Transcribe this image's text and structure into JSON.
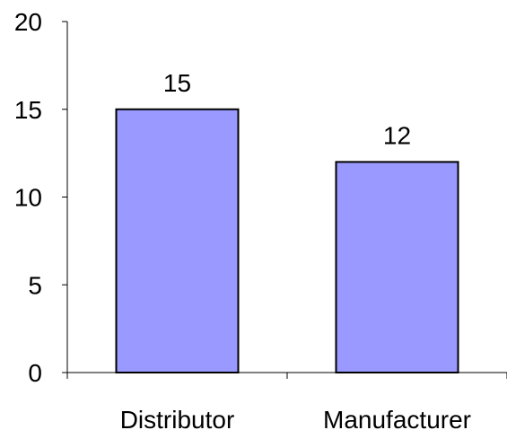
{
  "chart_data": {
    "type": "bar",
    "categories": [
      "Distributor",
      "Manufacturer"
    ],
    "values": [
      15,
      12
    ],
    "data_labels": [
      "15",
      "12"
    ],
    "y_ticks": [
      0,
      5,
      10,
      15,
      20
    ],
    "y_tick_labels": [
      "0",
      "5",
      "10",
      "15",
      "20"
    ],
    "ylim": [
      0,
      20
    ],
    "grid": false,
    "legend": "none",
    "bar_color": "#9999ff",
    "bar_edge_color": "#000000"
  }
}
